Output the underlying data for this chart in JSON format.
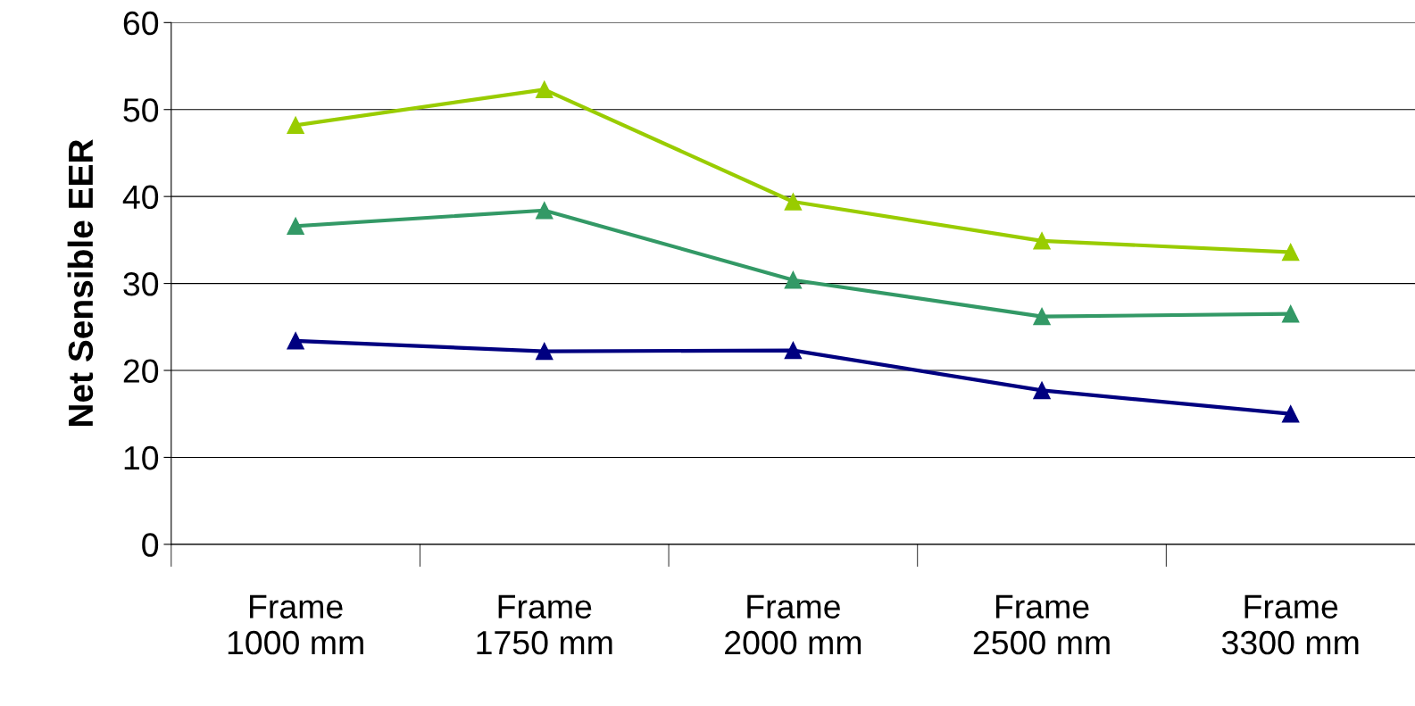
{
  "chart_data": {
    "type": "line",
    "ylabel": "Net Sensible EER",
    "categories": [
      "Frame\n1000 mm",
      "Frame\n1750 mm",
      "Frame\n2000 mm",
      "Frame\n2500 mm",
      "Frame\n3300 mm"
    ],
    "series": [
      {
        "color": "#99cc00",
        "values": [
          48.2,
          52.3,
          39.4,
          34.9,
          33.6
        ]
      },
      {
        "color": "#339966",
        "values": [
          36.6,
          38.4,
          30.4,
          26.2,
          26.5
        ]
      },
      {
        "color": "#000080",
        "values": [
          23.4,
          22.2,
          22.3,
          17.7,
          15.0
        ]
      }
    ],
    "ylim": [
      0,
      60
    ],
    "yticks": [
      0,
      10,
      20,
      30,
      40,
      50,
      60
    ],
    "grid": "y",
    "marker": "triangle",
    "line_style": "solid",
    "legend": false
  }
}
